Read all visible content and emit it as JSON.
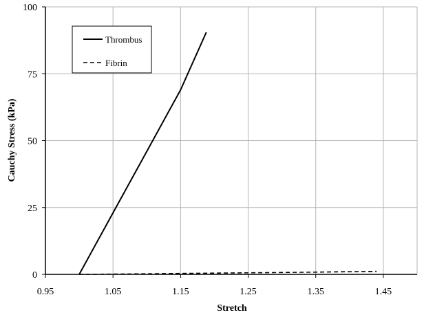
{
  "chart_data": {
    "type": "line",
    "title": "",
    "xlabel": "Stretch",
    "ylabel": "Cauchy Stress  (kPa)",
    "xlim": [
      0.95,
      1.5
    ],
    "ylim": [
      0,
      100
    ],
    "xticks": [
      0.95,
      1.05,
      1.15,
      1.25,
      1.35,
      1.45
    ],
    "xtick_labels": [
      "0.95",
      "1.05",
      "1.15",
      "1.25",
      "1.35",
      "1.45"
    ],
    "yticks": [
      0,
      25,
      50,
      75,
      100
    ],
    "ytick_labels": [
      "0",
      "25",
      "50",
      "75",
      "100"
    ],
    "grid": true,
    "legend": {
      "position": "top-left",
      "boxed": true
    },
    "series": [
      {
        "name": "Thrombus",
        "style": "solid",
        "color": "#000000",
        "x": [
          1.0,
          1.05,
          1.1,
          1.15,
          1.188
        ],
        "y": [
          0,
          23,
          46,
          69,
          90.5
        ]
      },
      {
        "name": "Fibrin",
        "style": "dashed",
        "color": "#000000",
        "x": [
          1.0,
          1.1,
          1.2,
          1.3,
          1.44
        ],
        "y": [
          0,
          0.2,
          0.45,
          0.7,
          1.1
        ]
      }
    ]
  }
}
